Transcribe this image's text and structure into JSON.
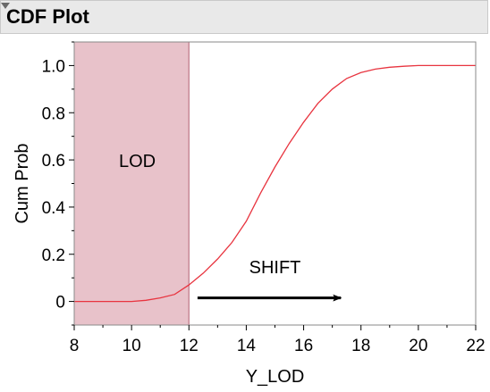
{
  "panel": {
    "title": "CDF Plot"
  },
  "chart_data": {
    "type": "line",
    "xlabel": "Y_LOD",
    "ylabel": "Cum Prob",
    "xlim": [
      8,
      22
    ],
    "ylim": [
      -0.1,
      1.1
    ],
    "xticks": [
      8,
      10,
      12,
      14,
      16,
      18,
      20,
      22
    ],
    "xtick_labels": [
      "8",
      "10",
      "12",
      "14",
      "16",
      "18",
      "20",
      "22"
    ],
    "yticks": [
      0,
      0.2,
      0.4,
      0.6,
      0.8,
      1.0
    ],
    "ytick_labels": [
      "0",
      "0.2",
      "0.4",
      "0.6",
      "0.8",
      "1.0"
    ],
    "grid": false,
    "series": [
      {
        "color": "#e8343f",
        "x": [
          8,
          9,
          10,
          10.5,
          11,
          11.5,
          12,
          12.5,
          13,
          13.5,
          14,
          14.5,
          15,
          15.5,
          16,
          16.5,
          17,
          17.5,
          18,
          18.5,
          19,
          19.5,
          20,
          21,
          22
        ],
        "y": [
          0.0,
          0.0,
          0.0,
          0.005,
          0.015,
          0.03,
          0.07,
          0.12,
          0.18,
          0.25,
          0.34,
          0.46,
          0.57,
          0.67,
          0.76,
          0.84,
          0.9,
          0.945,
          0.97,
          0.985,
          0.993,
          0.997,
          1.0,
          1.0,
          1.0
        ]
      }
    ],
    "shaded_region": {
      "x_start": 8,
      "x_end": 12,
      "label": "LOD",
      "label_x": 10.2,
      "label_y": 0.57,
      "color": "#e8c2ca",
      "edge_color": "#c88a98"
    },
    "arrow": {
      "label": "SHIFT",
      "from": [
        12.3,
        0.015
      ],
      "to": [
        17.3,
        0.015
      ],
      "label_x": 15.0,
      "label_y": 0.12
    }
  }
}
